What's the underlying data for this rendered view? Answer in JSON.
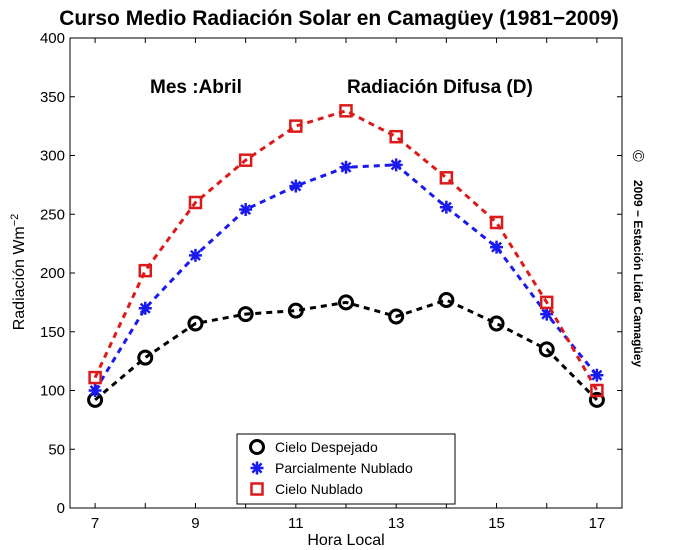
{
  "chart_data": {
    "type": "line",
    "title": "Curso Medio Radiación Solar en Camagüey (1981−2009)",
    "annotations": [
      "Mes :Abril",
      "Radiación Difusa (D)"
    ],
    "xlabel": "Hora Local",
    "ylabel_main": "Radiación Wm",
    "ylabel_sup": "−2",
    "side_note_symbol": "©",
    "side_note": "2009 − Estación Lidar Camagüey",
    "xlim": [
      6.5,
      17.5
    ],
    "ylim": [
      0,
      400
    ],
    "xticks": [
      "7",
      "9",
      "11",
      "13",
      "15",
      "17"
    ],
    "yticks": [
      "0",
      "50",
      "100",
      "150",
      "200",
      "250",
      "300",
      "350",
      "400"
    ],
    "x": [
      7,
      8,
      9,
      10,
      11,
      12,
      13,
      14,
      15,
      16,
      17
    ],
    "series": [
      {
        "name": "Cielo Despejado",
        "color": "#000000",
        "marker": "circle",
        "values": [
          92,
          128,
          157,
          165,
          168,
          175,
          163,
          177,
          157,
          135,
          92
        ]
      },
      {
        "name": "Parcialmente Nublado",
        "color": "#1a1aee",
        "marker": "asterisk",
        "values": [
          100,
          170,
          215,
          254,
          274,
          290,
          292,
          256,
          222,
          165,
          113
        ]
      },
      {
        "name": "Cielo Nublado",
        "color": "#dd1a1a",
        "marker": "square",
        "values": [
          111,
          202,
          260,
          296,
          325,
          338,
          316,
          281,
          243,
          175,
          100
        ]
      }
    ],
    "grid": false,
    "legend_position": "bottom-center"
  }
}
